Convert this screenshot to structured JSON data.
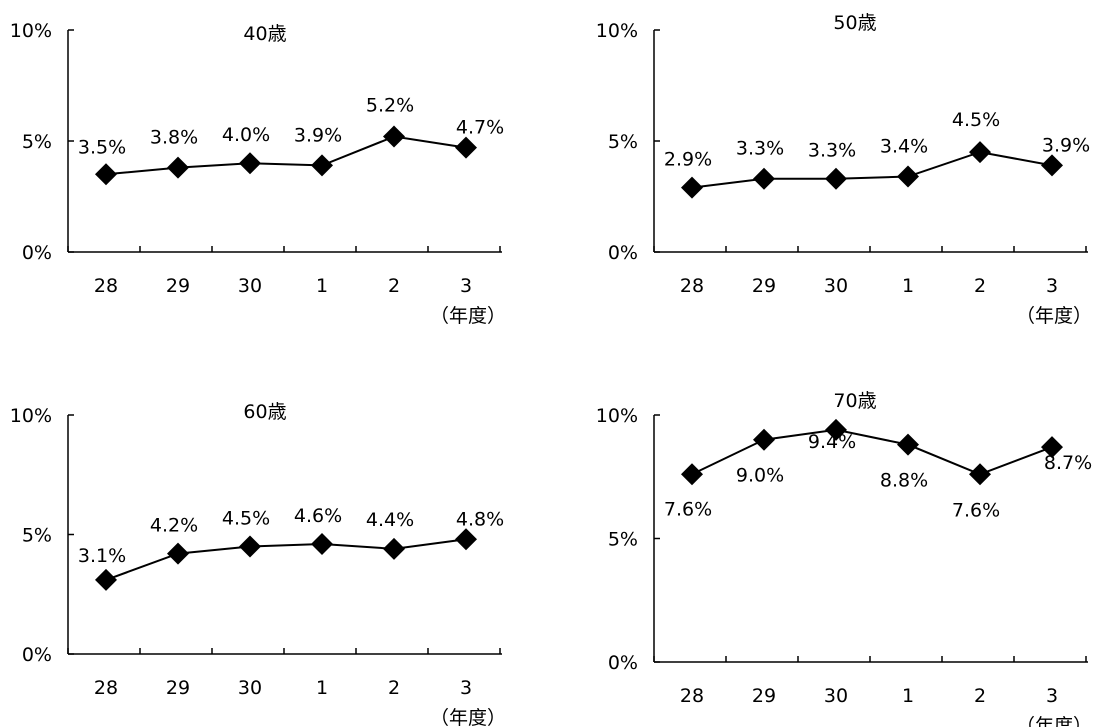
{
  "chart_data": [
    {
      "type": "line",
      "title": "40歳",
      "categories": [
        "28",
        "29",
        "30",
        "1",
        "2",
        "3"
      ],
      "x_unit_label": "（年度）",
      "values": [
        3.5,
        3.8,
        4.0,
        3.9,
        5.2,
        4.7
      ],
      "value_labels": [
        "3.5%",
        "3.8%",
        "4.0%",
        "3.9%",
        "5.2%",
        "4.7%"
      ],
      "yticks": [
        "0%",
        "5%",
        "10%"
      ],
      "ylim": [
        0,
        10
      ],
      "marker": "diamond",
      "color": "#000000"
    },
    {
      "type": "line",
      "title": "50歳",
      "categories": [
        "28",
        "29",
        "30",
        "1",
        "2",
        "3"
      ],
      "x_unit_label": "（年度）",
      "values": [
        2.9,
        3.3,
        3.3,
        3.4,
        4.5,
        3.9
      ],
      "value_labels": [
        "2.9%",
        "3.3%",
        "3.3%",
        "3.4%",
        "4.5%",
        "3.9%"
      ],
      "yticks": [
        "0%",
        "5%",
        "10%"
      ],
      "ylim": [
        0,
        10
      ],
      "marker": "diamond",
      "color": "#000000"
    },
    {
      "type": "line",
      "title": "60歳",
      "categories": [
        "28",
        "29",
        "30",
        "1",
        "2",
        "3"
      ],
      "x_unit_label": "（年度）",
      "values": [
        3.1,
        4.2,
        4.5,
        4.6,
        4.4,
        4.8
      ],
      "value_labels": [
        "3.1%",
        "4.2%",
        "4.5%",
        "4.6%",
        "4.4%",
        "4.8%"
      ],
      "yticks": [
        "0%",
        "5%",
        "10%"
      ],
      "ylim": [
        0,
        10
      ],
      "marker": "diamond",
      "color": "#000000"
    },
    {
      "type": "line",
      "title": "70歳",
      "categories": [
        "28",
        "29",
        "30",
        "1",
        "2",
        "3"
      ],
      "x_unit_label": "（年度）",
      "values": [
        7.6,
        9.0,
        9.4,
        8.8,
        7.6,
        8.7
      ],
      "value_labels": [
        "7.6%",
        "9.0%",
        "9.4%",
        "8.8%",
        "7.6%",
        "8.7%"
      ],
      "yticks": [
        "0%",
        "5%",
        "10%"
      ],
      "ylim": [
        0,
        10
      ],
      "marker": "diamond",
      "color": "#000000"
    }
  ]
}
